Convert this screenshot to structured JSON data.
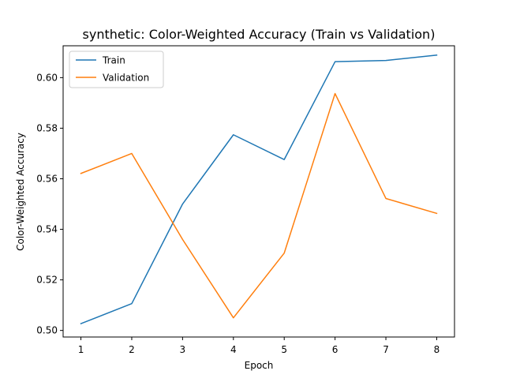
{
  "chart_data": {
    "type": "line",
    "title": "synthetic: Color-Weighted Accuracy (Train vs Validation)",
    "xlabel": "Epoch",
    "ylabel": "Color-Weighted Accuracy",
    "x": [
      1,
      2,
      3,
      4,
      5,
      6,
      7,
      8
    ],
    "xlim": [
      0.65,
      8.35
    ],
    "ylim": [
      0.4974,
      0.6126
    ],
    "xticks": [
      1,
      2,
      3,
      4,
      5,
      6,
      7,
      8
    ],
    "yticks": [
      0.5,
      0.52,
      0.54,
      0.56,
      0.58,
      0.6
    ],
    "ytick_labels": [
      "0.50",
      "0.52",
      "0.54",
      "0.56",
      "0.58",
      "0.60"
    ],
    "grid": false,
    "legend_position": "top-left",
    "series": [
      {
        "name": "Train",
        "color": "#1f77b4",
        "values": [
          0.5027,
          0.5106,
          0.55,
          0.5774,
          0.5676,
          0.6063,
          0.6068,
          0.6089
        ]
      },
      {
        "name": "Validation",
        "color": "#ff7f0e",
        "values": [
          0.5621,
          0.57,
          0.536,
          0.505,
          0.5306,
          0.5937,
          0.5522,
          0.5463
        ]
      }
    ]
  }
}
